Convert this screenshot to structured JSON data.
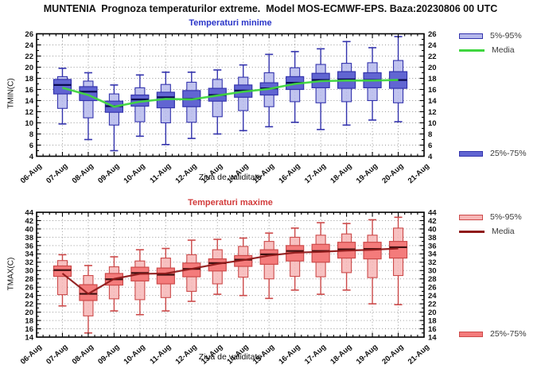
{
  "title": "MUNTENIA  Prognoza temperaturilor extreme.  Model MOS-ECMWF-EPS. Baza:20230806 00 UTC",
  "chart_data": [
    {
      "type": "boxplot",
      "title": "Temperaturi minime",
      "ylabel": "TMIN(C)",
      "xlabel": "Ziua de validitate",
      "ylim": [
        4,
        26
      ],
      "ytick_step": 2,
      "grid": true,
      "legend_position": "right",
      "x_categories": [
        "06-Aug",
        "07-Aug",
        "08-Aug",
        "09-Aug",
        "10-Aug",
        "11-Aug",
        "12-Aug",
        "13-Aug",
        "14-Aug",
        "15-Aug",
        "16-Aug",
        "17-Aug",
        "18-Aug",
        "19-Aug",
        "20-Aug",
        "21-Aug"
      ],
      "legend": [
        {
          "label": "5%-95%",
          "style": "outer-box"
        },
        {
          "label": "Media",
          "style": "line"
        },
        {
          "label": "25%-75%",
          "style": "inner-box"
        }
      ],
      "colors": {
        "title": "#2a35c8",
        "edge": "#3434ad",
        "outer_fill": "#b5b8ec",
        "inner_fill": "#6165d2",
        "median": "#0a0a50",
        "media_line": "#3fd63f"
      },
      "boxes": [
        {
          "x": "07-Aug",
          "min": 9.8,
          "p5": 12.6,
          "q1": 15.2,
          "median": 16.8,
          "q3": 17.8,
          "p95": 18.3,
          "max": 19.8,
          "media": 16.3
        },
        {
          "x": "08-Aug",
          "min": 7.0,
          "p5": 10.9,
          "q1": 14.0,
          "median": 15.6,
          "q3": 16.5,
          "p95": 17.5,
          "max": 19.0,
          "media": 15.0
        },
        {
          "x": "09-Aug",
          "min": 5.0,
          "p5": 9.6,
          "q1": 11.9,
          "median": 13.0,
          "q3": 13.9,
          "p95": 15.2,
          "max": 16.8,
          "media": 12.9
        },
        {
          "x": "10-Aug",
          "min": 7.6,
          "p5": 10.2,
          "q1": 13.0,
          "median": 14.2,
          "q3": 15.0,
          "p95": 16.3,
          "max": 18.6,
          "media": 13.8
        },
        {
          "x": "11-Aug",
          "min": 6.1,
          "p5": 10.0,
          "q1": 12.7,
          "median": 14.6,
          "q3": 15.5,
          "p95": 16.9,
          "max": 19.1,
          "media": 14.3
        },
        {
          "x": "12-Aug",
          "min": 7.2,
          "p5": 10.1,
          "q1": 12.9,
          "median": 14.3,
          "q3": 15.8,
          "p95": 17.3,
          "max": 19.1,
          "media": 14.2
        },
        {
          "x": "13-Aug",
          "min": 8.0,
          "p5": 11.1,
          "q1": 13.9,
          "median": 15.0,
          "q3": 16.2,
          "p95": 17.8,
          "max": 19.5,
          "media": 14.9
        },
        {
          "x": "14-Aug",
          "min": 8.6,
          "p5": 12.2,
          "q1": 14.6,
          "median": 15.8,
          "q3": 16.8,
          "p95": 18.2,
          "max": 20.4,
          "media": 15.6
        },
        {
          "x": "15-Aug",
          "min": 9.3,
          "p5": 12.9,
          "q1": 15.0,
          "median": 16.2,
          "q3": 17.2,
          "p95": 19.0,
          "max": 22.3,
          "media": 16.1
        },
        {
          "x": "16-Aug",
          "min": 10.1,
          "p5": 13.8,
          "q1": 16.0,
          "median": 17.2,
          "q3": 18.3,
          "p95": 19.9,
          "max": 22.8,
          "media": 17.0
        },
        {
          "x": "17-Aug",
          "min": 8.8,
          "p5": 13.6,
          "q1": 16.3,
          "median": 17.7,
          "q3": 18.9,
          "p95": 20.5,
          "max": 23.3,
          "media": 17.5
        },
        {
          "x": "18-Aug",
          "min": 9.6,
          "p5": 13.8,
          "q1": 16.2,
          "median": 17.8,
          "q3": 19.2,
          "p95": 20.7,
          "max": 24.6,
          "media": 17.6
        },
        {
          "x": "19-Aug",
          "min": 10.5,
          "p5": 14.0,
          "q1": 16.3,
          "median": 17.7,
          "q3": 19.0,
          "p95": 20.8,
          "max": 23.5,
          "media": 17.6
        },
        {
          "x": "20-Aug",
          "min": 10.2,
          "p5": 13.6,
          "q1": 16.2,
          "median": 17.7,
          "q3": 19.2,
          "p95": 21.2,
          "max": 25.5,
          "media": 17.7
        }
      ]
    },
    {
      "type": "boxplot",
      "title": "Temperaturi maxime",
      "ylabel": "TMAX(C)",
      "xlabel": "Ziua de validitate",
      "ylim": [
        14,
        44
      ],
      "ytick_step": 2,
      "grid": true,
      "legend_position": "right",
      "x_categories": [
        "06-Aug",
        "07-Aug",
        "08-Aug",
        "09-Aug",
        "10-Aug",
        "11-Aug",
        "12-Aug",
        "13-Aug",
        "14-Aug",
        "15-Aug",
        "16-Aug",
        "17-Aug",
        "18-Aug",
        "19-Aug",
        "20-Aug",
        "21-Aug"
      ],
      "legend": [
        {
          "label": "5%-95%",
          "style": "outer-box"
        },
        {
          "label": "Media",
          "style": "line"
        },
        {
          "label": "25%-75%",
          "style": "inner-box"
        }
      ],
      "colors": {
        "title": "#d23b3b",
        "edge": "#cc4a4a",
        "outer_fill": "#f7b6b6",
        "inner_fill": "#f47b7b",
        "median": "#401010",
        "media_line": "#8f1a1a"
      },
      "boxes": [
        {
          "x": "07-Aug",
          "min": 21.5,
          "p5": 24.2,
          "q1": 28.6,
          "median": 30.1,
          "q3": 31.1,
          "p95": 32.4,
          "max": 33.8,
          "media": 29.3
        },
        {
          "x": "08-Aug",
          "min": 15.0,
          "p5": 19.1,
          "q1": 22.8,
          "median": 24.4,
          "q3": 26.6,
          "p95": 28.8,
          "max": 31.2,
          "media": 24.4
        },
        {
          "x": "09-Aug",
          "min": 20.3,
          "p5": 23.2,
          "q1": 26.5,
          "median": 27.9,
          "q3": 29.3,
          "p95": 30.9,
          "max": 33.3,
          "media": 28.0
        },
        {
          "x": "10-Aug",
          "min": 19.4,
          "p5": 23.0,
          "q1": 27.5,
          "median": 29.4,
          "q3": 30.8,
          "p95": 32.3,
          "max": 35.0,
          "media": 29.2
        },
        {
          "x": "11-Aug",
          "min": 20.3,
          "p5": 23.5,
          "q1": 26.8,
          "median": 29.0,
          "q3": 30.6,
          "p95": 33.0,
          "max": 35.3,
          "media": 29.3
        },
        {
          "x": "12-Aug",
          "min": 22.6,
          "p5": 25.0,
          "q1": 28.5,
          "median": 30.4,
          "q3": 31.8,
          "p95": 33.8,
          "max": 37.3,
          "media": 30.4
        },
        {
          "x": "13-Aug",
          "min": 24.3,
          "p5": 26.8,
          "q1": 29.9,
          "median": 31.8,
          "q3": 32.8,
          "p95": 35.0,
          "max": 37.5,
          "media": 31.6
        },
        {
          "x": "14-Aug",
          "min": 24.0,
          "p5": 28.4,
          "q1": 31.0,
          "median": 32.6,
          "q3": 33.6,
          "p95": 35.8,
          "max": 37.8,
          "media": 32.5
        },
        {
          "x": "15-Aug",
          "min": 23.3,
          "p5": 28.0,
          "q1": 31.5,
          "median": 33.9,
          "q3": 35.0,
          "p95": 37.0,
          "max": 39.0,
          "media": 33.6
        },
        {
          "x": "16-Aug",
          "min": 25.3,
          "p5": 28.6,
          "q1": 32.3,
          "median": 34.7,
          "q3": 36.0,
          "p95": 38.0,
          "max": 40.2,
          "media": 34.3
        },
        {
          "x": "17-Aug",
          "min": 24.3,
          "p5": 28.5,
          "q1": 32.0,
          "median": 34.7,
          "q3": 36.3,
          "p95": 38.5,
          "max": 41.5,
          "media": 34.5
        },
        {
          "x": "18-Aug",
          "min": 25.3,
          "p5": 29.5,
          "q1": 33.0,
          "median": 35.1,
          "q3": 36.8,
          "p95": 38.8,
          "max": 41.3,
          "media": 34.8
        },
        {
          "x": "19-Aug",
          "min": 22.0,
          "p5": 28.3,
          "q1": 32.8,
          "median": 35.2,
          "q3": 36.8,
          "p95": 38.5,
          "max": 42.2,
          "media": 35.0
        },
        {
          "x": "20-Aug",
          "min": 21.8,
          "p5": 28.8,
          "q1": 33.0,
          "median": 35.6,
          "q3": 37.0,
          "p95": 40.2,
          "max": 42.8,
          "media": 35.3
        }
      ]
    }
  ]
}
